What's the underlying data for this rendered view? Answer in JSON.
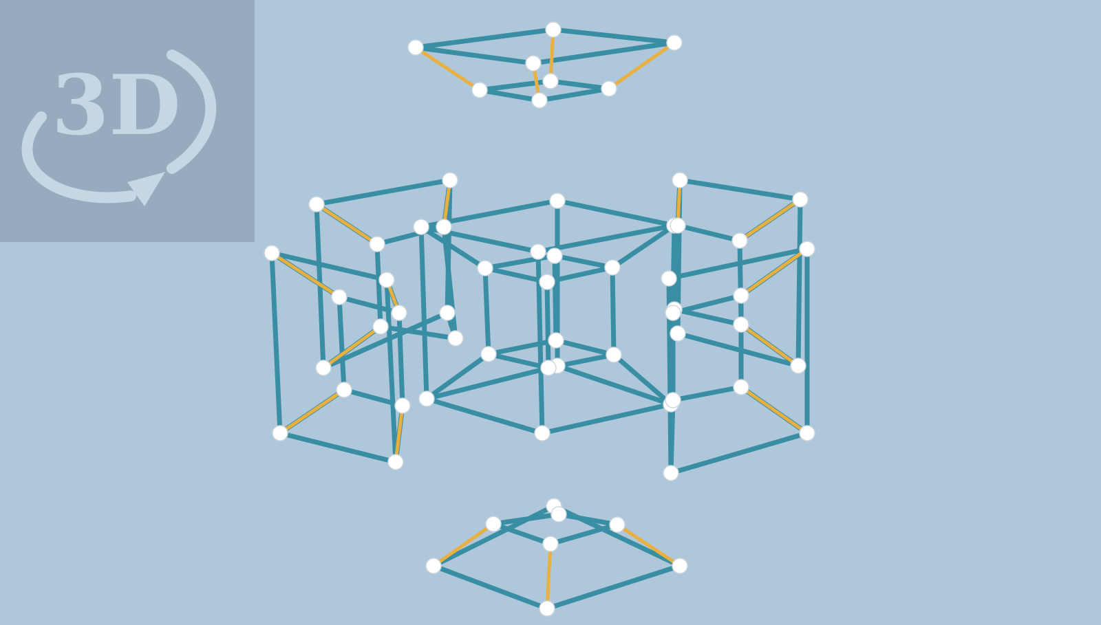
{
  "badge": {
    "label": "3D",
    "icon": "rotate-3d-icon"
  },
  "colors": {
    "background": "#afc7db",
    "badge_background": "#97aabe",
    "badge_mark": "#c5d6e4",
    "edge_primary": "#3a8ea3",
    "edge_connector": "#e8b041",
    "vertex": "#ffffff"
  }
}
